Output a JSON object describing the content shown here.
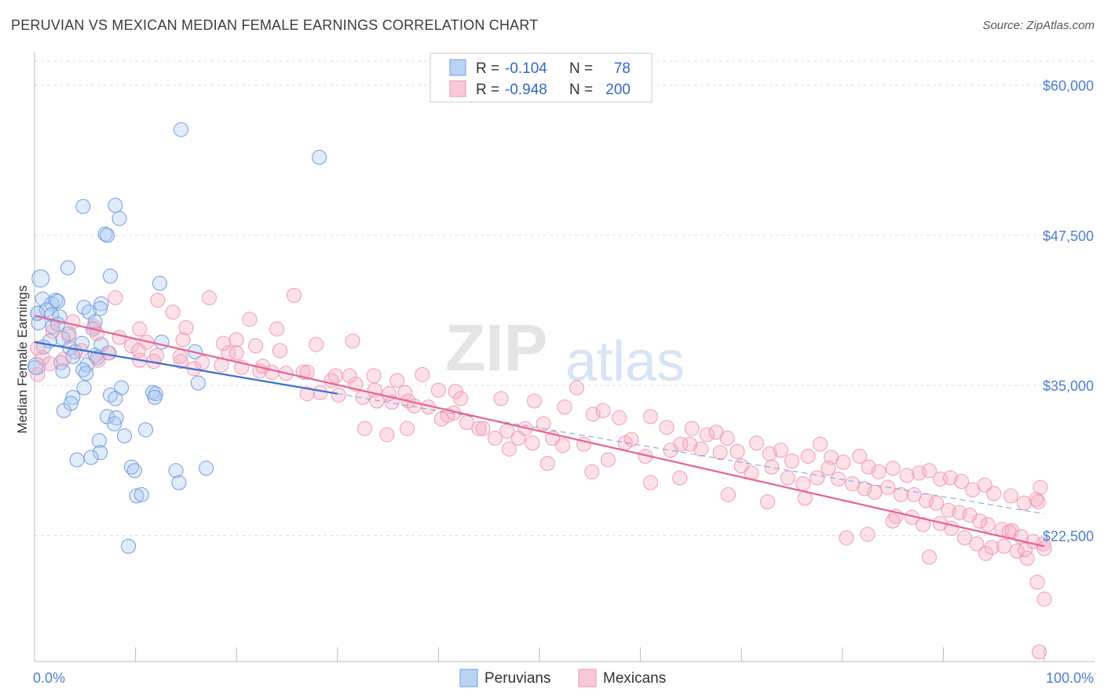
{
  "header": {
    "title": "PERUVIAN VS MEXICAN MEDIAN FEMALE EARNINGS CORRELATION CHART",
    "source": "Source: ZipAtlas.com"
  },
  "watermark": {
    "zip": "ZIP",
    "atlas": "atlas"
  },
  "legend": {
    "rows": [
      {
        "r_label": "R =",
        "r_value": "-0.104",
        "n_label": "N =",
        "n_value": "78",
        "color": "#a8c6f0"
      },
      {
        "r_label": "R =",
        "r_value": "-0.948",
        "n_label": "N =",
        "n_value": "200",
        "color": "#f6b8cb"
      }
    ]
  },
  "bottom_legend": [
    {
      "label": "Peruvians",
      "color": "#a8c6f0"
    },
    {
      "label": "Mexicans",
      "color": "#f6b8cb"
    }
  ],
  "chart_data": {
    "type": "scatter",
    "title": "PERUVIAN VS MEXICAN MEDIAN FEMALE EARNINGS CORRELATION CHART",
    "ylabel": "Median Female Earnings",
    "xlabel": "",
    "xlim": [
      0,
      100
    ],
    "ylim": [
      12000,
      62000
    ],
    "x_ticks": [
      "0.0%",
      "100.0%"
    ],
    "y_ticks": [
      {
        "value": 22500,
        "label": "$22,500"
      },
      {
        "value": 35000,
        "label": "$35,000"
      },
      {
        "value": 47500,
        "label": "$47,500"
      },
      {
        "value": 60000,
        "label": "$60,000"
      }
    ],
    "grid": true,
    "legend_position": "top-center",
    "colors": {
      "peruvians": "#7aa6e6",
      "mexicans": "#f09ab6",
      "peru_line": "#3a6fd0",
      "mex_line": "#e8628f"
    },
    "series": [
      {
        "name": "Peruvians",
        "R": -0.104,
        "N": 78,
        "trend": {
          "x0": 0,
          "y0": 38600,
          "x1": 100,
          "y1": 24300,
          "solid_until": 30
        },
        "points": [
          [
            14.5,
            56300
          ],
          [
            28.2,
            54000
          ],
          [
            4.8,
            49900
          ],
          [
            8.0,
            50000
          ],
          [
            8.4,
            48900
          ],
          [
            7.0,
            47600
          ],
          [
            7.2,
            47500
          ],
          [
            0.6,
            43900
          ],
          [
            3.3,
            44800
          ],
          [
            7.5,
            44100
          ],
          [
            12.4,
            43500
          ],
          [
            0.8,
            42200
          ],
          [
            1.7,
            41800
          ],
          [
            2.1,
            42100
          ],
          [
            2.3,
            42000
          ],
          [
            4.9,
            41500
          ],
          [
            6.6,
            41800
          ],
          [
            6.5,
            41400
          ],
          [
            0.3,
            41000
          ],
          [
            1.2,
            41300
          ],
          [
            1.7,
            40900
          ],
          [
            2.5,
            40700
          ],
          [
            5.4,
            41100
          ],
          [
            6.0,
            40300
          ],
          [
            0.4,
            40200
          ],
          [
            1.8,
            39900
          ],
          [
            2.3,
            40100
          ],
          [
            3.4,
            39300
          ],
          [
            5.8,
            39700
          ],
          [
            1.5,
            38700
          ],
          [
            2.8,
            38900
          ],
          [
            4.7,
            38500
          ],
          [
            6.6,
            38400
          ],
          [
            12.6,
            38600
          ],
          [
            0.9,
            38200
          ],
          [
            3.5,
            38100
          ],
          [
            4.0,
            37800
          ],
          [
            6.0,
            37500
          ],
          [
            7.3,
            37700
          ],
          [
            15.9,
            37800
          ],
          [
            3.8,
            37400
          ],
          [
            6.2,
            37300
          ],
          [
            2.6,
            36900
          ],
          [
            5.2,
            36700
          ],
          [
            0.1,
            36500
          ],
          [
            2.8,
            36200
          ],
          [
            4.8,
            36300
          ],
          [
            5.1,
            36000
          ],
          [
            16.2,
            35200
          ],
          [
            4.9,
            34800
          ],
          [
            8.6,
            34800
          ],
          [
            11.7,
            34400
          ],
          [
            7.5,
            34200
          ],
          [
            12.0,
            34300
          ],
          [
            3.8,
            34000
          ],
          [
            8.0,
            33900
          ],
          [
            11.9,
            34000
          ],
          [
            3.6,
            33500
          ],
          [
            2.9,
            32900
          ],
          [
            7.2,
            32400
          ],
          [
            8.1,
            32300
          ],
          [
            7.9,
            31800
          ],
          [
            11.0,
            31300
          ],
          [
            8.9,
            30800
          ],
          [
            6.4,
            30400
          ],
          [
            6.5,
            29400
          ],
          [
            5.6,
            29000
          ],
          [
            4.2,
            28800
          ],
          [
            9.6,
            28200
          ],
          [
            9.9,
            27900
          ],
          [
            14.0,
            27900
          ],
          [
            17.0,
            28100
          ],
          [
            14.3,
            26900
          ],
          [
            10.1,
            25800
          ],
          [
            10.6,
            25900
          ],
          [
            9.3,
            21600
          ],
          [
            0.2,
            36600
          ],
          [
            0.3,
            41000
          ]
        ]
      },
      {
        "name": "Mexicans",
        "R": -0.948,
        "N": 200,
        "trend": {
          "x0": 0,
          "y0": 40800,
          "x1": 100,
          "y1": 21600
        },
        "points": [
          [
            25.7,
            42500
          ],
          [
            8.0,
            42300
          ],
          [
            12.2,
            42100
          ],
          [
            17.3,
            42300
          ],
          [
            13.7,
            41100
          ],
          [
            21.3,
            40500
          ],
          [
            3.8,
            40300
          ],
          [
            5.9,
            39900
          ],
          [
            10.4,
            39700
          ],
          [
            15.0,
            39800
          ],
          [
            24.0,
            39700
          ],
          [
            1.8,
            39500
          ],
          [
            6.2,
            39300
          ],
          [
            8.4,
            39000
          ],
          [
            14.7,
            38800
          ],
          [
            20.0,
            38800
          ],
          [
            3.4,
            39100
          ],
          [
            9.6,
            38300
          ],
          [
            11.1,
            38600
          ],
          [
            18.7,
            38500
          ],
          [
            21.9,
            38300
          ],
          [
            27.9,
            38400
          ],
          [
            31.5,
            38700
          ],
          [
            0.3,
            38100
          ],
          [
            4.6,
            37900
          ],
          [
            7.4,
            37700
          ],
          [
            10.3,
            37900
          ],
          [
            12.1,
            37500
          ],
          [
            14.4,
            37400
          ],
          [
            19.2,
            37700
          ],
          [
            20.0,
            37700
          ],
          [
            24.3,
            37900
          ],
          [
            0.8,
            37300
          ],
          [
            2.9,
            37200
          ],
          [
            6.3,
            37100
          ],
          [
            10.4,
            37100
          ],
          [
            11.8,
            37000
          ],
          [
            14.5,
            37000
          ],
          [
            16.6,
            36900
          ],
          [
            18.5,
            36700
          ],
          [
            20.5,
            36500
          ],
          [
            22.6,
            36600
          ],
          [
            23.5,
            36100
          ],
          [
            26.6,
            36100
          ],
          [
            1.5,
            36800
          ],
          [
            15.8,
            36400
          ],
          [
            22.3,
            36200
          ],
          [
            24.9,
            36000
          ],
          [
            27.0,
            36100
          ],
          [
            29.8,
            35800
          ],
          [
            31.2,
            35800
          ],
          [
            33.6,
            35800
          ],
          [
            35.9,
            35400
          ],
          [
            38.4,
            35900
          ],
          [
            0.3,
            35900
          ],
          [
            29.4,
            35400
          ],
          [
            31.8,
            35100
          ],
          [
            33.7,
            34600
          ],
          [
            35.1,
            34300
          ],
          [
            36.7,
            34400
          ],
          [
            40.0,
            34600
          ],
          [
            41.7,
            34500
          ],
          [
            27.0,
            34300
          ],
          [
            28.3,
            34400
          ],
          [
            30.1,
            34200
          ],
          [
            32.5,
            34000
          ],
          [
            33.9,
            33700
          ],
          [
            35.4,
            33600
          ],
          [
            37.6,
            33300
          ],
          [
            39.0,
            33200
          ],
          [
            42.2,
            33900
          ],
          [
            46.2,
            33900
          ],
          [
            49.5,
            33700
          ],
          [
            52.5,
            33200
          ],
          [
            53.7,
            34800
          ],
          [
            37.0,
            33700
          ],
          [
            40.3,
            32200
          ],
          [
            41.5,
            32700
          ],
          [
            42.8,
            31900
          ],
          [
            44.0,
            31400
          ],
          [
            45.6,
            30600
          ],
          [
            46.8,
            31200
          ],
          [
            48.6,
            31400
          ],
          [
            50.4,
            31800
          ],
          [
            47.9,
            30600
          ],
          [
            49.3,
            30200
          ],
          [
            51.3,
            30600
          ],
          [
            52.3,
            30000
          ],
          [
            54.4,
            30100
          ],
          [
            55.3,
            32600
          ],
          [
            56.3,
            32900
          ],
          [
            57.9,
            32300
          ],
          [
            59.1,
            30500
          ],
          [
            61.0,
            32400
          ],
          [
            62.6,
            31500
          ],
          [
            64.0,
            30100
          ],
          [
            65.1,
            31400
          ],
          [
            66.6,
            30900
          ],
          [
            67.5,
            31100
          ],
          [
            68.6,
            30600
          ],
          [
            69.6,
            29500
          ],
          [
            71.5,
            30200
          ],
          [
            72.8,
            29300
          ],
          [
            73.9,
            29600
          ],
          [
            75.0,
            28700
          ],
          [
            76.6,
            29100
          ],
          [
            77.8,
            30100
          ],
          [
            78.9,
            29000
          ],
          [
            80.1,
            28600
          ],
          [
            81.7,
            29100
          ],
          [
            82.6,
            28200
          ],
          [
            83.6,
            27800
          ],
          [
            85.0,
            28100
          ],
          [
            86.4,
            27500
          ],
          [
            87.6,
            27700
          ],
          [
            88.6,
            27900
          ],
          [
            89.7,
            27200
          ],
          [
            90.7,
            27300
          ],
          [
            91.8,
            27000
          ],
          [
            92.9,
            26300
          ],
          [
            94.1,
            26700
          ],
          [
            95.0,
            26000
          ],
          [
            96.7,
            25800
          ],
          [
            98.0,
            25200
          ],
          [
            99.2,
            25500
          ],
          [
            56.8,
            28800
          ],
          [
            58.5,
            30200
          ],
          [
            60.5,
            29100
          ],
          [
            63.0,
            29600
          ],
          [
            64.9,
            30100
          ],
          [
            66.0,
            29700
          ],
          [
            67.9,
            29400
          ],
          [
            70.0,
            28300
          ],
          [
            71.0,
            27700
          ],
          [
            73.0,
            28200
          ],
          [
            74.6,
            27300
          ],
          [
            76.1,
            26800
          ],
          [
            77.5,
            27300
          ],
          [
            78.6,
            28100
          ],
          [
            79.6,
            27200
          ],
          [
            81.0,
            26800
          ],
          [
            82.2,
            26400
          ],
          [
            83.2,
            26100
          ],
          [
            84.5,
            26500
          ],
          [
            85.8,
            25900
          ],
          [
            87.1,
            25900
          ],
          [
            88.3,
            25400
          ],
          [
            89.3,
            25200
          ],
          [
            90.5,
            24600
          ],
          [
            91.6,
            24400
          ],
          [
            92.6,
            24200
          ],
          [
            93.6,
            23700
          ],
          [
            94.4,
            23400
          ],
          [
            95.8,
            23000
          ],
          [
            96.8,
            22900
          ],
          [
            97.7,
            22400
          ],
          [
            98.9,
            22000
          ],
          [
            99.9,
            21800
          ],
          [
            85.3,
            24100
          ],
          [
            86.9,
            24000
          ],
          [
            88.0,
            23400
          ],
          [
            89.7,
            23500
          ],
          [
            90.8,
            23100
          ],
          [
            92.1,
            22300
          ],
          [
            93.3,
            21800
          ],
          [
            94.8,
            21500
          ],
          [
            96.0,
            21600
          ],
          [
            97.3,
            21200
          ],
          [
            98.3,
            20600
          ],
          [
            99.3,
            18600
          ],
          [
            100.0,
            17200
          ],
          [
            99.4,
            25300
          ],
          [
            100.0,
            21400
          ],
          [
            94.2,
            21000
          ],
          [
            96.5,
            22800
          ],
          [
            98.1,
            21300
          ],
          [
            99.6,
            26500
          ],
          [
            99.5,
            12800
          ],
          [
            85.0,
            23700
          ],
          [
            88.6,
            20700
          ],
          [
            82.5,
            22600
          ],
          [
            80.4,
            22300
          ],
          [
            76.3,
            25600
          ],
          [
            72.6,
            25300
          ],
          [
            68.7,
            25900
          ],
          [
            63.9,
            27300
          ],
          [
            61.0,
            26900
          ],
          [
            55.2,
            27800
          ],
          [
            50.8,
            28500
          ],
          [
            47.0,
            29700
          ],
          [
            44.4,
            31400
          ],
          [
            40.9,
            32500
          ],
          [
            36.9,
            31400
          ],
          [
            34.9,
            30900
          ],
          [
            32.7,
            31400
          ]
        ]
      }
    ]
  }
}
